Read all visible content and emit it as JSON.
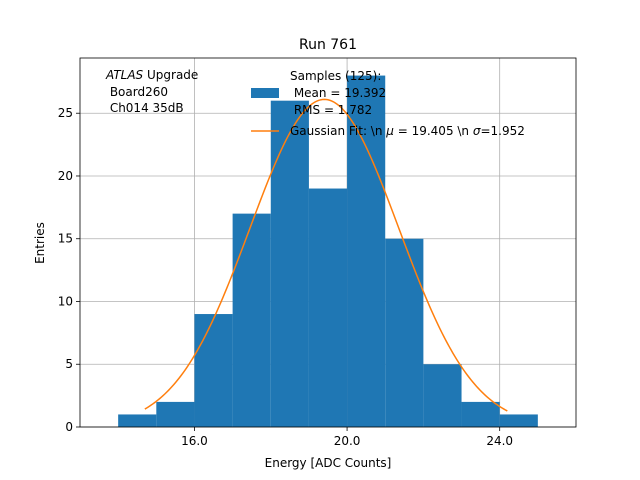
{
  "chart_data": {
    "type": "bar",
    "title": "Run 761",
    "xlabel": "Energy [ADC Counts]",
    "ylabel": "Entries",
    "xlim": [
      13.0,
      26.0
    ],
    "ylim": [
      0,
      29.4
    ],
    "grid": true,
    "x_ticks": [
      16.0,
      20.0,
      24.0
    ],
    "x_tick_labels": [
      "16.0",
      "20.0",
      "24.0"
    ],
    "y_ticks": [
      0,
      5,
      10,
      15,
      20,
      25
    ],
    "y_tick_labels": [
      "0",
      "5",
      "10",
      "15",
      "20",
      "25"
    ],
    "histogram": {
      "name": "Samples (125):",
      "bin_edges": [
        14,
        15,
        16,
        17,
        18,
        19,
        20,
        21,
        22,
        23,
        24,
        25
      ],
      "counts": [
        1,
        2,
        9,
        17,
        26,
        19,
        28,
        15,
        5,
        2,
        1
      ],
      "color": "#1f77b4"
    },
    "fit": {
      "name": "Gaussian Fit",
      "type": "gaussian",
      "mu": 19.405,
      "sigma": 1.952,
      "amplitude": 26.1,
      "x_range": [
        14.7,
        24.2
      ],
      "color": "#ff7f0e"
    },
    "annotation": {
      "experiment": "ATLAS",
      "suffix": " Upgrade",
      "line2": " Board260",
      "line3": " Ch014 35dB"
    },
    "legend": {
      "placement": "top-center",
      "hist_line1": "Samples (125):",
      "hist_line2": " Mean = 19.392",
      "hist_line3": " RMS = 1.782",
      "fit_prefix": "Gaussian Fit: \\n ",
      "mu_symbol": "μ",
      "fit_middle": " = 19.405 \\n ",
      "sigma_symbol": "σ",
      "fit_suffix": "=1.952"
    }
  }
}
